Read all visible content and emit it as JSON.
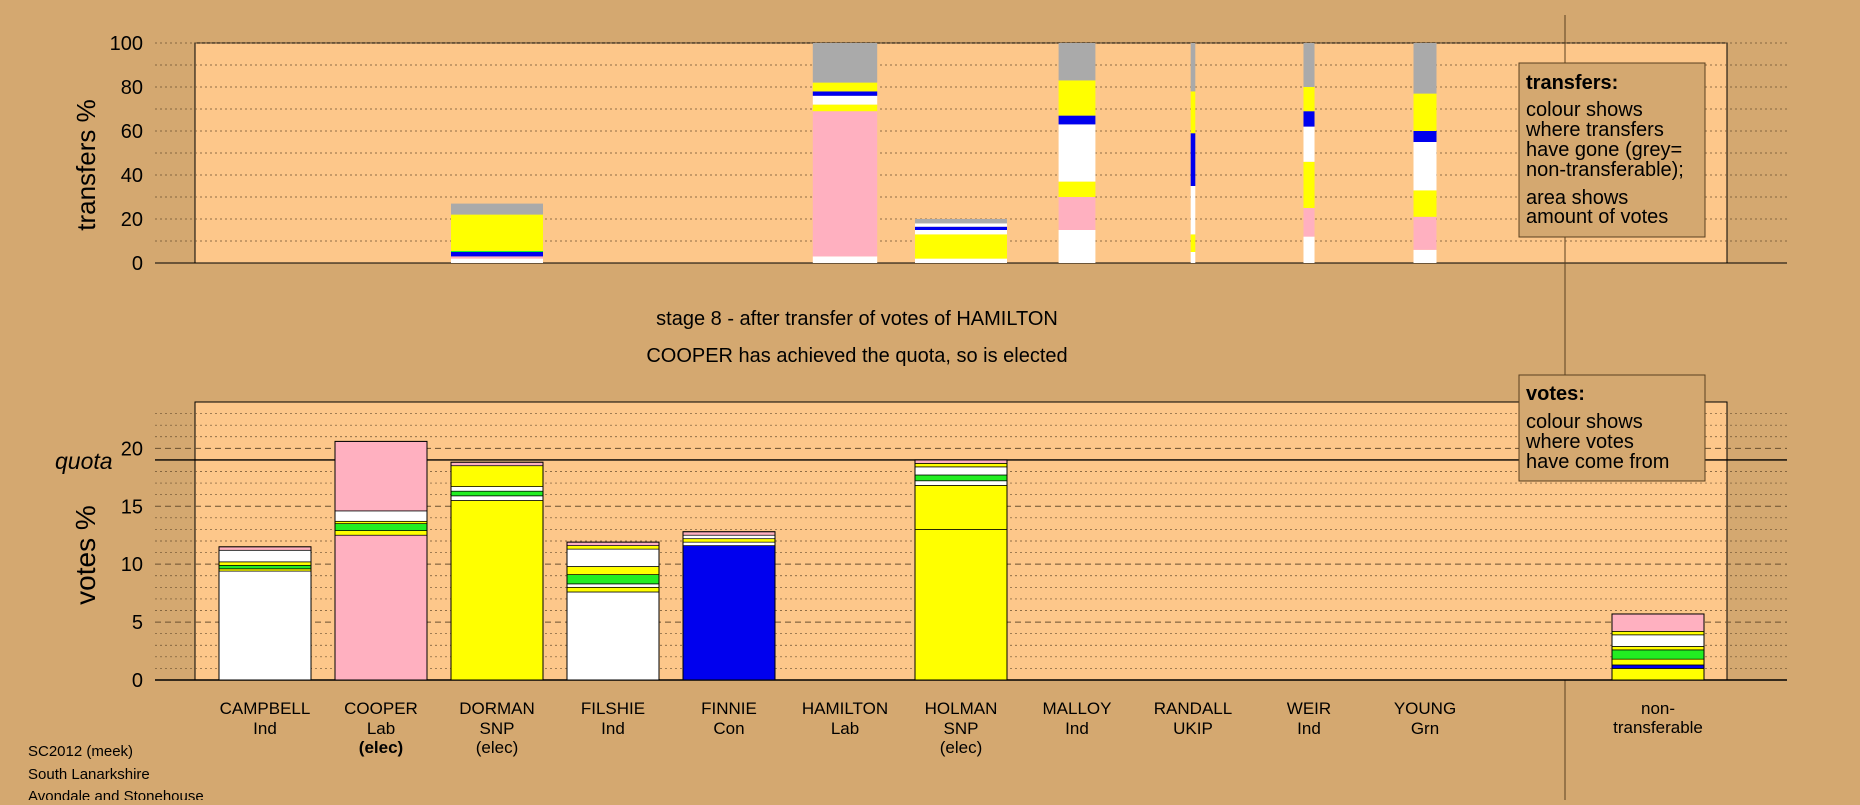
{
  "colors": {
    "page_bg": "#d4a870",
    "plot_bg": "#fdc78a",
    "Ind": "#ffffff",
    "Lab": "#ffb0c0",
    "SNP": "#ffff00",
    "Con": "#0000ee",
    "UKIP": "#a000c0",
    "Grn": "#22ee22",
    "nontransferable": "#aaaaaa"
  },
  "stage_title": "stage 8 - after transfer of votes of HAMILTON",
  "stage_subtitle": "COOPER has achieved the quota, so is elected",
  "footer": {
    "line1": "SC2012 (meek)",
    "line2": "South Lanarkshire",
    "line3": "Avondale and Stonehouse"
  },
  "transfers_legend": {
    "title": "transfers:",
    "lines": [
      "colour shows",
      "where transfers",
      "have gone (grey=",
      "non-transferable);"
    ],
    "lines2": [
      "area shows",
      "amount of votes"
    ]
  },
  "votes_legend": {
    "title": "votes:",
    "lines": [
      "colour shows",
      "where votes",
      "have come from"
    ]
  },
  "quota_label": "quota",
  "chart_data": [
    {
      "type": "bar",
      "subtype": "stacked",
      "ylabel": "transfers %",
      "ylim": [
        0,
        100
      ],
      "yticks": [
        0,
        20,
        40,
        60,
        80,
        100
      ],
      "categories": [
        "CAMPBELL",
        "COOPER",
        "DORMAN",
        "FILSHIE",
        "FINNIE",
        "HAMILTON",
        "HOLMAN",
        "MALLOY",
        "RANDALL",
        "WEIR",
        "YOUNG"
      ],
      "bar_widths": [
        0,
        0,
        1,
        0,
        0,
        0.7,
        1,
        0.4,
        0.05,
        0.12,
        0.25
      ],
      "segments": [
        [],
        [],
        [
          {
            "c": "Ind",
            "v": 2
          },
          {
            "c": "Lab",
            "v": 1
          },
          {
            "c": "Con",
            "v": 2
          },
          {
            "c": "Grn",
            "v": 0.5
          },
          {
            "c": "SNP",
            "v": 16.5
          },
          {
            "c": "nontransferable",
            "v": 5
          }
        ],
        [],
        [],
        [
          {
            "c": "Ind",
            "v": 3
          },
          {
            "c": "Lab",
            "v": 66
          },
          {
            "c": "SNP",
            "v": 3
          },
          {
            "c": "Ind",
            "v": 4
          },
          {
            "c": "Con",
            "v": 2
          },
          {
            "c": "SNP",
            "v": 4
          },
          {
            "c": "nontransferable",
            "v": 18
          }
        ],
        [
          {
            "c": "Ind",
            "v": 2
          },
          {
            "c": "SNP",
            "v": 11
          },
          {
            "c": "Ind",
            "v": 2
          },
          {
            "c": "Con",
            "v": 1.5
          },
          {
            "c": "Ind",
            "v": 1.5
          },
          {
            "c": "nontransferable",
            "v": 2
          }
        ],
        [
          {
            "c": "Ind",
            "v": 15
          },
          {
            "c": "Lab",
            "v": 15
          },
          {
            "c": "SNP",
            "v": 7
          },
          {
            "c": "Ind",
            "v": 26
          },
          {
            "c": "Con",
            "v": 4
          },
          {
            "c": "SNP",
            "v": 16
          },
          {
            "c": "nontransferable",
            "v": 17
          }
        ],
        [
          {
            "c": "Ind",
            "v": 5
          },
          {
            "c": "SNP",
            "v": 8
          },
          {
            "c": "Ind",
            "v": 22
          },
          {
            "c": "Con",
            "v": 24
          },
          {
            "c": "SNP",
            "v": 19
          },
          {
            "c": "nontransferable",
            "v": 22
          }
        ],
        [
          {
            "c": "Ind",
            "v": 12
          },
          {
            "c": "Lab",
            "v": 13
          },
          {
            "c": "SNP",
            "v": 21
          },
          {
            "c": "Ind",
            "v": 16
          },
          {
            "c": "Con",
            "v": 7
          },
          {
            "c": "SNP",
            "v": 11
          },
          {
            "c": "nontransferable",
            "v": 20
          }
        ],
        [
          {
            "c": "Ind",
            "v": 6
          },
          {
            "c": "Lab",
            "v": 15
          },
          {
            "c": "SNP",
            "v": 12
          },
          {
            "c": "Ind",
            "v": 22
          },
          {
            "c": "Con",
            "v": 5
          },
          {
            "c": "SNP",
            "v": 17
          },
          {
            "c": "nontransferable",
            "v": 23
          }
        ]
      ]
    },
    {
      "type": "bar",
      "subtype": "stacked",
      "ylabel": "votes %",
      "ylim": [
        0,
        24
      ],
      "yticks": [
        0,
        5,
        10,
        15,
        20
      ],
      "quota": 19,
      "categories": [
        "CAMPBELL",
        "COOPER",
        "DORMAN",
        "FILSHIE",
        "FINNIE",
        "HAMILTON",
        "HOLMAN",
        "MALLOY",
        "RANDALL",
        "WEIR",
        "YOUNG",
        "non-transferable"
      ],
      "parties": [
        "Ind",
        "Lab",
        "SNP",
        "Ind",
        "Con",
        "Lab",
        "SNP",
        "Ind",
        "UKIP",
        "Ind",
        "Grn",
        ""
      ],
      "status": [
        "",
        "(elec)",
        "(elec)",
        "",
        "",
        "",
        "(elec)",
        "",
        "",
        "",
        "",
        ""
      ],
      "non_transferable_label": [
        "non-",
        "transferable"
      ],
      "segments": [
        [
          {
            "c": "Ind",
            "v": 9.4
          },
          {
            "c": "SNP",
            "v": 0.2
          },
          {
            "c": "Grn",
            "v": 0.3
          },
          {
            "c": "SNP",
            "v": 0.3
          },
          {
            "c": "Ind",
            "v": 1.0
          },
          {
            "c": "Lab",
            "v": 0.3
          }
        ],
        [
          {
            "c": "Lab",
            "v": 12.5
          },
          {
            "c": "SNP",
            "v": 0.4
          },
          {
            "c": "Grn",
            "v": 0.6
          },
          {
            "c": "SNP",
            "v": 0.2
          },
          {
            "c": "Ind",
            "v": 0.9
          },
          {
            "c": "Lab",
            "v": 6.0
          }
        ],
        [
          {
            "c": "SNP",
            "v": 15.5
          },
          {
            "c": "Ind",
            "v": 0.4
          },
          {
            "c": "Grn",
            "v": 0.4
          },
          {
            "c": "Ind",
            "v": 0.4
          },
          {
            "c": "SNP",
            "v": 1.8
          },
          {
            "c": "Lab",
            "v": 0.3
          }
        ],
        [
          {
            "c": "Ind",
            "v": 7.6
          },
          {
            "c": "SNP",
            "v": 0.4
          },
          {
            "c": "Ind",
            "v": 0.3
          },
          {
            "c": "Grn",
            "v": 0.8
          },
          {
            "c": "SNP",
            "v": 0.7
          },
          {
            "c": "Ind",
            "v": 1.5
          },
          {
            "c": "SNP",
            "v": 0.3
          },
          {
            "c": "Lab",
            "v": 0.3
          }
        ],
        [
          {
            "c": "Con",
            "v": 11.6
          },
          {
            "c": "Ind",
            "v": 0.3
          },
          {
            "c": "SNP",
            "v": 0.3
          },
          {
            "c": "Ind",
            "v": 0.3
          },
          {
            "c": "Lab",
            "v": 0.3
          }
        ],
        [],
        [
          {
            "c": "SNP",
            "v": 13.0
          },
          {
            "c": "SNP",
            "v": 3.8
          },
          {
            "c": "Ind",
            "v": 0.4
          },
          {
            "c": "Grn",
            "v": 0.5
          },
          {
            "c": "Ind",
            "v": 0.7
          },
          {
            "c": "SNP",
            "v": 0.3
          },
          {
            "c": "Lab",
            "v": 0.3
          }
        ],
        [],
        [],
        [],
        [],
        [
          {
            "c": "SNP",
            "v": 1.0
          },
          {
            "c": "Con",
            "v": 0.3
          },
          {
            "c": "SNP",
            "v": 0.5
          },
          {
            "c": "Grn",
            "v": 0.8
          },
          {
            "c": "SNP",
            "v": 0.3
          },
          {
            "c": "Ind",
            "v": 1.0
          },
          {
            "c": "SNP",
            "v": 0.3
          },
          {
            "c": "Lab",
            "v": 1.5
          }
        ]
      ]
    }
  ]
}
